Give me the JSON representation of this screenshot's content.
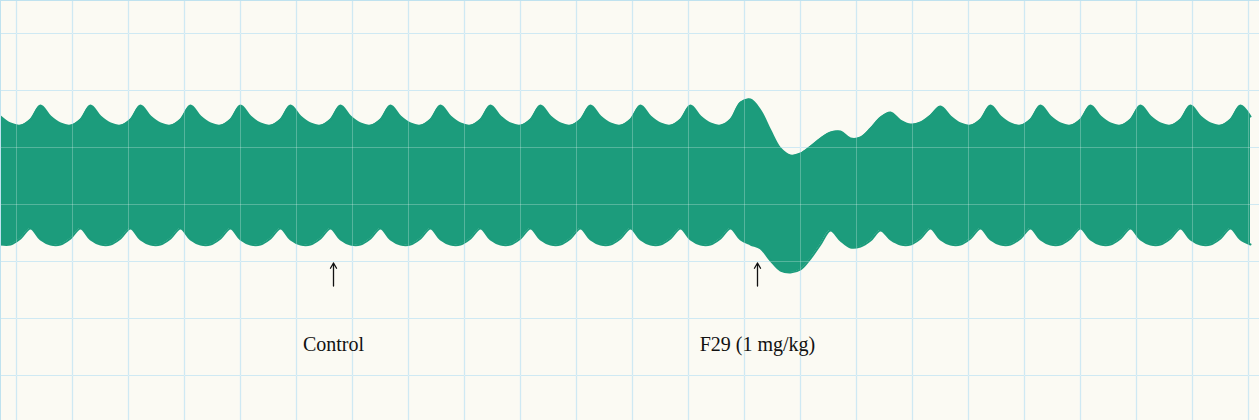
{
  "chart_data": {
    "type": "area",
    "x": [
      0,
      10,
      20,
      30,
      40,
      50,
      60,
      70,
      80,
      90,
      100,
      110,
      120,
      130,
      140,
      150,
      160,
      170,
      180,
      190,
      200,
      210,
      220,
      230,
      240,
      250,
      260,
      270,
      280,
      290,
      300,
      310,
      320,
      330,
      340,
      350,
      360,
      370,
      380,
      390,
      400,
      410,
      420,
      430,
      440,
      450,
      460,
      470,
      480,
      490,
      500,
      510,
      520,
      530,
      540,
      550,
      560,
      570,
      580,
      590,
      600,
      610,
      620,
      630,
      640,
      650,
      660,
      670,
      680,
      690,
      700,
      710,
      720,
      730,
      740,
      750,
      760,
      770,
      780,
      790,
      800,
      810,
      820,
      830,
      840,
      850,
      860,
      870,
      880,
      890,
      900,
      910,
      920,
      930,
      940,
      950,
      960,
      970,
      980,
      990,
      1000,
      1010,
      1020,
      1030,
      1040,
      1050,
      1060,
      1070,
      1080,
      1090,
      1100,
      1110,
      1120,
      1130,
      1140,
      1150,
      1160,
      1170,
      1180,
      1190,
      1200,
      1210,
      1220,
      1230,
      1240,
      1250
    ],
    "series": [
      {
        "color": "#1c9c7c",
        "values": [
          304,
          297,
          295,
          301,
          315,
          304,
          297,
          295,
          301,
          315,
          304,
          297,
          295,
          301,
          315,
          304,
          297,
          295,
          301,
          315,
          304,
          297,
          295,
          301,
          315,
          304,
          297,
          295,
          301,
          315,
          304,
          297,
          295,
          301,
          315,
          304,
          297,
          295,
          301,
          315,
          304,
          297,
          295,
          301,
          315,
          304,
          297,
          295,
          301,
          315,
          304,
          297,
          295,
          301,
          315,
          304,
          297,
          295,
          301,
          315,
          304,
          297,
          295,
          301,
          315,
          304,
          297,
          295,
          301,
          315,
          304,
          297,
          295,
          301,
          318,
          321,
          310,
          290,
          272,
          265,
          267,
          274,
          282,
          288,
          289,
          282,
          283,
          292,
          303,
          308,
          300,
          296,
          298,
          305,
          314,
          304,
          297,
          295,
          301,
          315,
          304,
          297,
          295,
          301,
          315,
          304,
          297,
          295,
          301,
          315,
          304,
          297,
          295,
          301,
          315,
          304,
          297,
          295,
          301,
          315,
          304,
          297,
          295,
          301,
          315,
          304
        ]
      },
      {
        "color": "#1c9c7c",
        "values": [
          176,
          176,
          182,
          192,
          181,
          176,
          176,
          182,
          192,
          181,
          176,
          176,
          182,
          192,
          181,
          176,
          176,
          182,
          192,
          181,
          176,
          176,
          182,
          192,
          181,
          176,
          176,
          182,
          192,
          181,
          176,
          176,
          182,
          192,
          181,
          176,
          176,
          182,
          192,
          181,
          176,
          176,
          182,
          192,
          181,
          176,
          176,
          182,
          192,
          181,
          176,
          176,
          182,
          192,
          181,
          176,
          176,
          182,
          192,
          181,
          176,
          176,
          182,
          192,
          181,
          176,
          176,
          182,
          192,
          181,
          176,
          176,
          182,
          192,
          181,
          176,
          172,
          160,
          150,
          148,
          151,
          162,
          176,
          190,
          180,
          173,
          174,
          180,
          190,
          181,
          176,
          176,
          182,
          192,
          181,
          176,
          176,
          182,
          192,
          181,
          176,
          176,
          182,
          192,
          181,
          176,
          176,
          182,
          192,
          181,
          176,
          176,
          182,
          192,
          181,
          176,
          176,
          182,
          192,
          181,
          176,
          176,
          182,
          192,
          181,
          176
        ]
      }
    ],
    "xlim": [
      0,
      1259
    ],
    "ylim": [
      0,
      420
    ],
    "xticks": [
      16,
      72,
      128,
      184,
      240,
      296,
      352,
      408,
      464,
      520,
      576,
      632,
      688,
      744,
      800,
      856,
      912,
      968,
      1024,
      1080,
      1136,
      1192,
      1248
    ],
    "yticks": [
      45,
      102,
      159,
      216,
      273,
      330,
      387
    ],
    "grid": true,
    "tick_labels": false,
    "annotations": [
      {
        "text": "Control",
        "x": 333
      },
      {
        "text": "F29 (1 mg/kg)",
        "x": 757
      }
    ]
  }
}
